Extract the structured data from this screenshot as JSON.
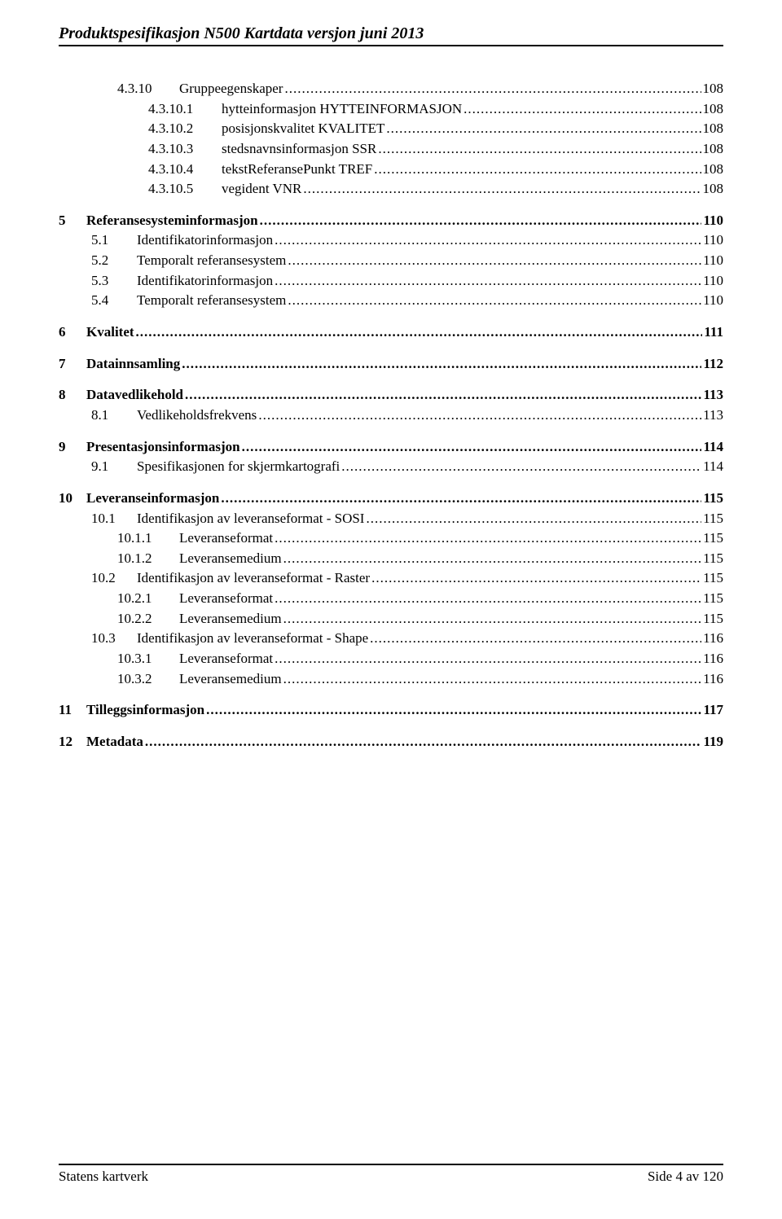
{
  "header": {
    "title": "Produktspesifikasjon N500 Kartdata versjon juni 2013"
  },
  "toc": [
    {
      "level": 2,
      "bold": false,
      "num": "4.3.10",
      "title": "Gruppeegenskaper",
      "page": "108"
    },
    {
      "level": 3,
      "bold": false,
      "num": "4.3.10.1",
      "title": "hytteinformasjon HYTTEINFORMASJON",
      "page": "108"
    },
    {
      "level": 3,
      "bold": false,
      "num": "4.3.10.2",
      "title": "posisjonskvalitet KVALITET",
      "page": "108"
    },
    {
      "level": 3,
      "bold": false,
      "num": "4.3.10.3",
      "title": "stedsnavnsinformasjon SSR",
      "page": "108"
    },
    {
      "level": 3,
      "bold": false,
      "num": "4.3.10.4",
      "title": "tekstReferansePunkt TREF",
      "page": "108"
    },
    {
      "level": 3,
      "bold": false,
      "num": "4.3.10.5",
      "title": "vegident VNR",
      "page": "108"
    },
    {
      "spacer": true
    },
    {
      "level": 0,
      "bold": true,
      "num": "5",
      "title": "Referansesysteminformasjon",
      "page": "110"
    },
    {
      "level": 1,
      "bold": false,
      "num": "5.1",
      "title": "Identifikatorinformasjon",
      "page": "110"
    },
    {
      "level": 1,
      "bold": false,
      "num": "5.2",
      "title": "Temporalt referansesystem",
      "page": "110"
    },
    {
      "level": 1,
      "bold": false,
      "num": "5.3",
      "title": "Identifikatorinformasjon",
      "page": "110"
    },
    {
      "level": 1,
      "bold": false,
      "num": "5.4",
      "title": "Temporalt referansesystem",
      "page": "110"
    },
    {
      "spacer": true
    },
    {
      "level": 0,
      "bold": true,
      "num": "6",
      "title": "Kvalitet",
      "page": "111"
    },
    {
      "spacer": true
    },
    {
      "level": 0,
      "bold": true,
      "num": "7",
      "title": "Datainnsamling",
      "page": "112"
    },
    {
      "spacer": true
    },
    {
      "level": 0,
      "bold": true,
      "num": "8",
      "title": "Datavedlikehold",
      "page": "113"
    },
    {
      "level": 1,
      "bold": false,
      "num": "8.1",
      "title": "Vedlikeholdsfrekvens",
      "page": "113"
    },
    {
      "spacer": true
    },
    {
      "level": 0,
      "bold": true,
      "num": "9",
      "title": "Presentasjonsinformasjon",
      "page": "114"
    },
    {
      "level": 1,
      "bold": false,
      "num": "9.1",
      "title": "Spesifikasjonen for skjermkartografi",
      "page": "114"
    },
    {
      "spacer": true
    },
    {
      "level": 0,
      "bold": true,
      "num": "10",
      "title": "Leveranseinformasjon",
      "page": "115"
    },
    {
      "level": 1,
      "bold": false,
      "num": "10.1",
      "title": "Identifikasjon av leveranseformat - SOSI",
      "page": "115"
    },
    {
      "level": 2,
      "bold": false,
      "num": "10.1.1",
      "title": "Leveranseformat",
      "page": "115"
    },
    {
      "level": 2,
      "bold": false,
      "num": "10.1.2",
      "title": "Leveransemedium",
      "page": "115"
    },
    {
      "level": 1,
      "bold": false,
      "num": "10.2",
      "title": "Identifikasjon av leveranseformat - Raster",
      "page": "115"
    },
    {
      "level": 2,
      "bold": false,
      "num": "10.2.1",
      "title": "Leveranseformat",
      "page": "115"
    },
    {
      "level": 2,
      "bold": false,
      "num": "10.2.2",
      "title": "Leveransemedium",
      "page": "115"
    },
    {
      "level": 1,
      "bold": false,
      "num": "10.3",
      "title": "Identifikasjon av leveranseformat - Shape",
      "page": "116"
    },
    {
      "level": 2,
      "bold": false,
      "num": "10.3.1",
      "title": "Leveranseformat",
      "page": "116"
    },
    {
      "level": 2,
      "bold": false,
      "num": "10.3.2",
      "title": "Leveransemedium",
      "page": "116"
    },
    {
      "spacer": true
    },
    {
      "level": 0,
      "bold": true,
      "num": "11",
      "title": "Tilleggsinformasjon",
      "page": "117"
    },
    {
      "spacer": true
    },
    {
      "level": 0,
      "bold": true,
      "num": "12",
      "title": "Metadata",
      "page": "119"
    }
  ],
  "footer": {
    "left": "Statens kartverk",
    "right": "Side  4 av 120"
  },
  "num_width": {
    "0": "34px",
    "1": "56px",
    "2": "76px",
    "3": "90px"
  }
}
